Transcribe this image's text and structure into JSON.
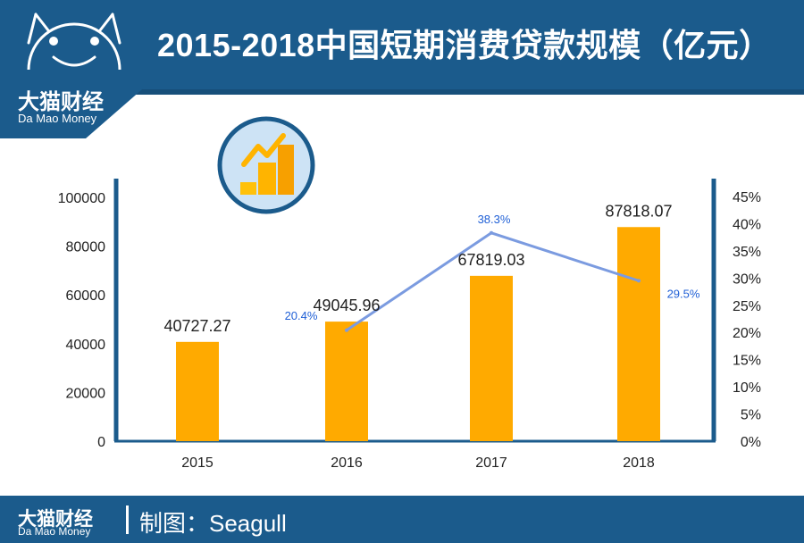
{
  "header": {
    "title": "2015-2018中国短期消费贷款规模（亿元）"
  },
  "brand": {
    "name_cn": "大猫财经",
    "name_en": "Da Mao Money"
  },
  "footer": {
    "brand_cn": "大猫财经",
    "brand_en": "Da Mao Money",
    "credit": "制图：Seagull"
  },
  "colors": {
    "header": "#1b5b8c",
    "bar": "#ffaa00",
    "line": "#7b9be0",
    "pct_label": "#1f5fd6",
    "icon_ring": "#1b5b8c",
    "icon_fill": "#cde3f5"
  },
  "icons": {
    "logo": "cat-face-icon",
    "chart_badge": "growth-chart-icon"
  },
  "chart_data": {
    "type": "bar",
    "categories": [
      "2015",
      "2016",
      "2017",
      "2018"
    ],
    "series": [
      {
        "values": [
          40727.27,
          49045.96,
          67819.03,
          87818.07
        ],
        "value_labels": [
          "40727.27",
          "49045.96",
          "67819.03",
          "87818.07"
        ],
        "axis": "left"
      },
      {
        "type": "line",
        "axis": "right",
        "values": [
          null,
          20.4,
          38.3,
          29.5
        ],
        "value_labels": [
          "",
          "20.4%",
          "38.3%",
          "29.5%"
        ]
      }
    ],
    "y_left": {
      "range": [
        0,
        100000
      ],
      "ticks": [
        "0",
        "20000",
        "40000",
        "60000",
        "80000",
        "100000"
      ]
    },
    "y_right": {
      "range": [
        0,
        45
      ],
      "ticks": [
        "0%",
        "5%",
        "10%",
        "15%",
        "20%",
        "25%",
        "30%",
        "35%",
        "40%",
        "45%"
      ]
    },
    "grid": false,
    "legend": "none"
  }
}
